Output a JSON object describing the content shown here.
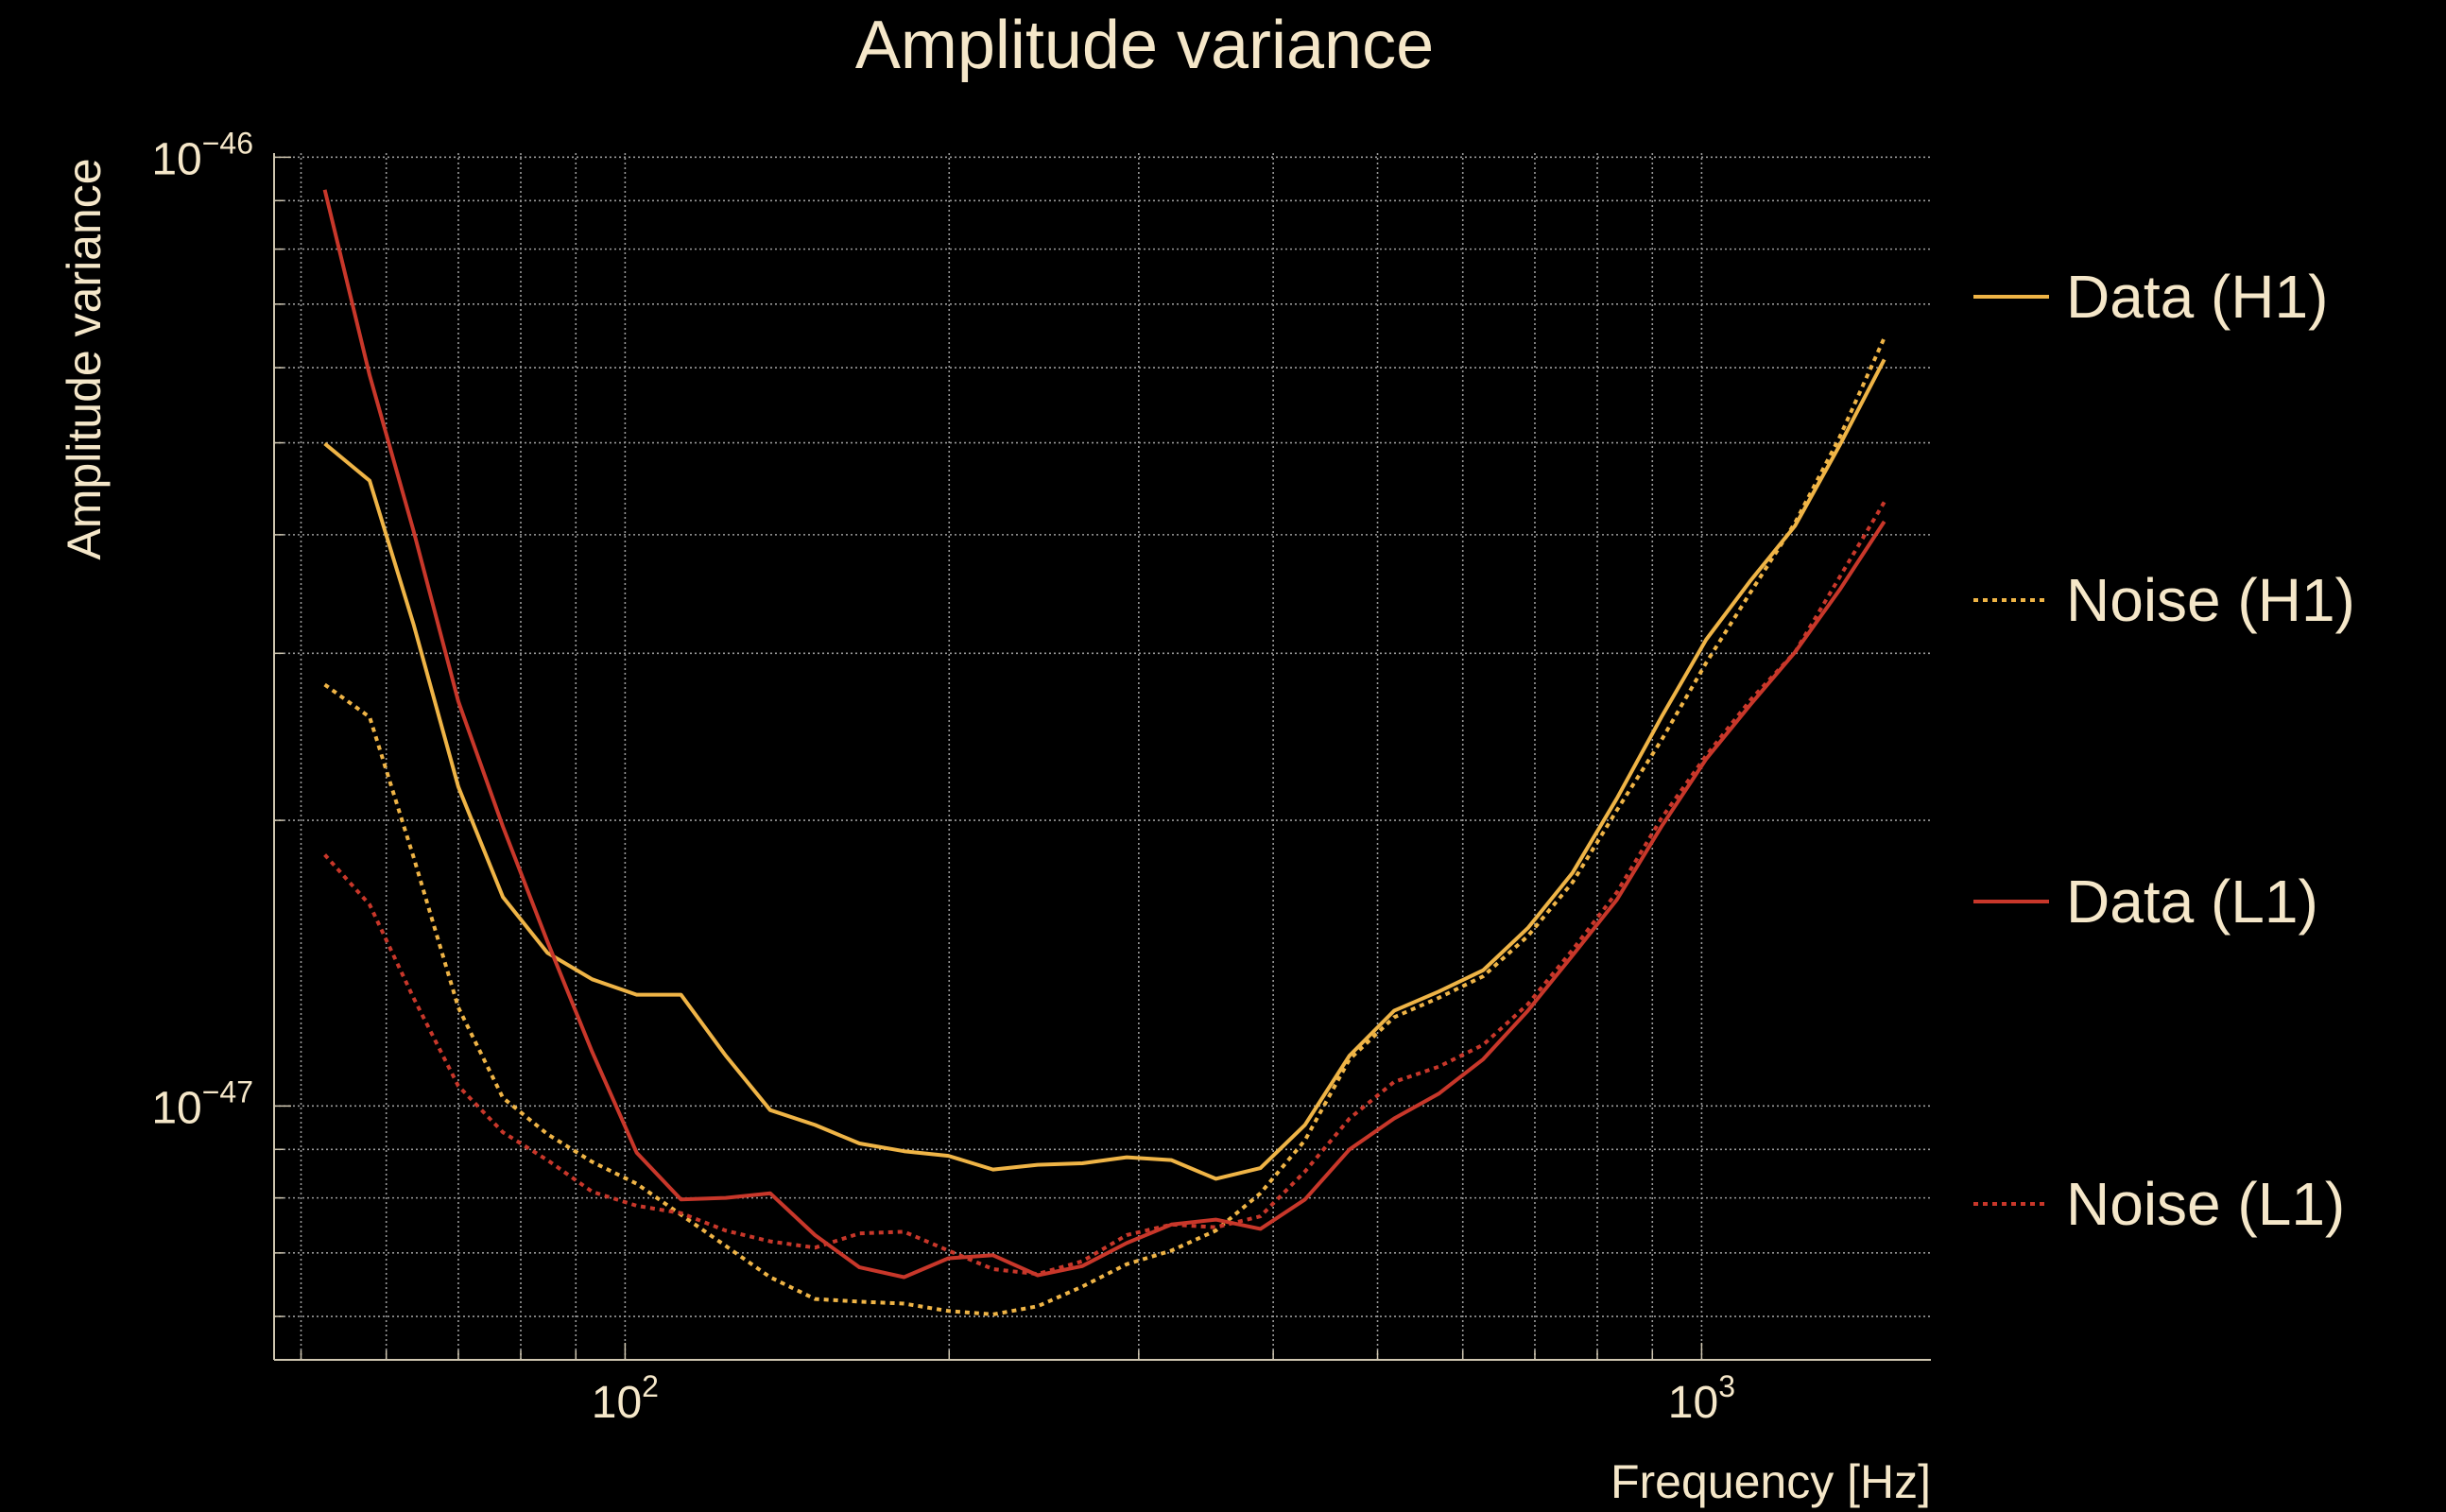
{
  "chart_data": {
    "type": "line",
    "title": "Amplitude variance",
    "xlabel": "Frequency [Hz]",
    "ylabel": "Amplitude variance",
    "xscale": "log",
    "yscale": "log",
    "xlim": [
      47.2,
      1633
    ],
    "ylim": [
      5.4e-48,
      1.01e-46
    ],
    "x_ticks": [
      {
        "value": 100,
        "base": "10",
        "exp": "2"
      },
      {
        "value": 1000,
        "base": "10",
        "exp": "3"
      }
    ],
    "y_ticks": [
      {
        "value": 1e-46,
        "base": "10",
        "exp": "−46"
      },
      {
        "value": 1e-47,
        "base": "10",
        "exp": "−47"
      }
    ],
    "grid": true,
    "legend_placement": "right",
    "value_scale": 1e-47,
    "x": [
      52.6,
      57.9,
      63.6,
      70.0,
      77.0,
      84.7,
      93.2,
      102.5,
      112.7,
      124.0,
      136.4,
      150.1,
      165.1,
      181.6,
      199.7,
      219.7,
      241.7,
      265.8,
      292.4,
      321.7,
      353.8,
      389.2,
      428.1,
      470.9,
      518.0,
      569.8,
      626.8,
      689.5,
      758.5,
      834.3,
      917.7,
      1009.5,
      1110.5,
      1221.5,
      1343.7,
      1478.0
    ],
    "series": [
      {
        "name": "Data (H1)",
        "color": "#efb446",
        "style": "solid",
        "values": [
          4.99,
          4.56,
          3.22,
          2.17,
          1.66,
          1.45,
          1.36,
          1.31,
          1.31,
          1.13,
          0.99,
          0.955,
          0.913,
          0.896,
          0.886,
          0.857,
          0.867,
          0.87,
          0.883,
          0.877,
          0.838,
          0.86,
          0.955,
          1.13,
          1.26,
          1.32,
          1.39,
          1.54,
          1.76,
          2.11,
          2.57,
          3.1,
          3.58,
          4.09,
          4.97,
          6.12
        ]
      },
      {
        "name": "Noise (H1)",
        "color": "#efb446",
        "style": "dotted",
        "values": [
          2.78,
          2.57,
          1.83,
          1.27,
          1.02,
          0.934,
          0.873,
          0.828,
          0.768,
          0.712,
          0.66,
          0.626,
          0.622,
          0.619,
          0.608,
          0.603,
          0.615,
          0.645,
          0.681,
          0.704,
          0.739,
          0.809,
          0.92,
          1.12,
          1.24,
          1.3,
          1.37,
          1.51,
          1.72,
          2.05,
          2.43,
          2.93,
          3.48,
          4.12,
          5.07,
          6.45
        ]
      },
      {
        "name": "Data (L1)",
        "color": "#c8372a",
        "style": "solid",
        "values": [
          9.24,
          5.89,
          4.04,
          2.67,
          1.97,
          1.49,
          1.14,
          0.893,
          0.797,
          0.8,
          0.809,
          0.731,
          0.676,
          0.66,
          0.691,
          0.696,
          0.663,
          0.678,
          0.717,
          0.75,
          0.759,
          0.742,
          0.797,
          0.9,
          0.97,
          1.03,
          1.12,
          1.26,
          1.44,
          1.65,
          1.97,
          2.32,
          2.65,
          3.01,
          3.5,
          4.13
        ]
      },
      {
        "name": "Noise (L1)",
        "color": "#c8372a",
        "style": "dotted",
        "values": [
          1.84,
          1.63,
          1.3,
          1.05,
          0.938,
          0.877,
          0.812,
          0.785,
          0.771,
          0.739,
          0.72,
          0.709,
          0.734,
          0.737,
          0.704,
          0.673,
          0.665,
          0.686,
          0.731,
          0.75,
          0.745,
          0.765,
          0.853,
          0.97,
          1.06,
          1.1,
          1.16,
          1.28,
          1.46,
          1.68,
          2.01,
          2.34,
          2.68,
          3.01,
          3.61,
          4.33
        ]
      }
    ]
  }
}
